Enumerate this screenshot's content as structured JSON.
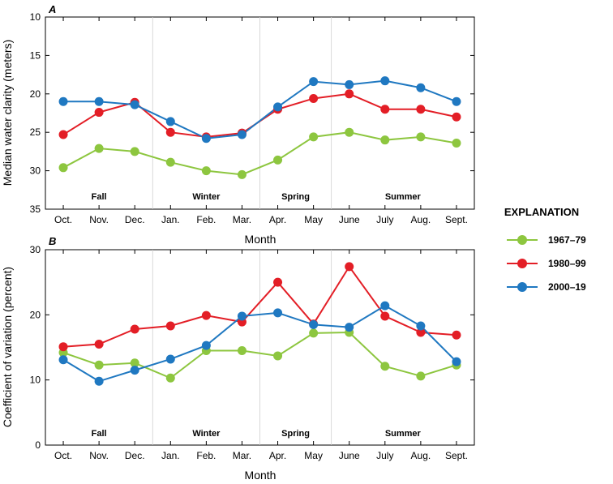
{
  "chart_data": [
    {
      "type": "line",
      "panel_label": "A",
      "ylabel": "Median water clarity (meters)",
      "xlabel": "Month",
      "ylim": [
        35,
        10
      ],
      "y_inverted": true,
      "yticks": [
        "10",
        "15",
        "20",
        "25",
        "30",
        "35"
      ],
      "ytick_values": [
        10,
        15,
        20,
        25,
        30,
        35
      ],
      "categories": [
        "Oct.",
        "Nov.",
        "Dec.",
        "Jan.",
        "Feb.",
        "Mar.",
        "Apr.",
        "May",
        "June",
        "July",
        "Aug.",
        "Sept."
      ],
      "seasons": [
        "Fall",
        "Winter",
        "Spring",
        "Summer"
      ],
      "series": [
        {
          "name": "1967–79",
          "color": "#8DC63F",
          "values": [
            29.6,
            27.1,
            27.5,
            28.9,
            30.0,
            30.5,
            28.6,
            25.6,
            25.0,
            26.0,
            25.6,
            26.4
          ]
        },
        {
          "name": "1980–99",
          "color": "#E31E26",
          "values": [
            25.3,
            22.4,
            21.1,
            25.0,
            25.6,
            25.1,
            22.0,
            20.6,
            20.0,
            22.0,
            22.0,
            23.0
          ]
        },
        {
          "name": "2000–19",
          "color": "#1F78C1",
          "values": [
            21.0,
            21.0,
            21.4,
            23.6,
            25.8,
            25.3,
            21.7,
            18.4,
            18.8,
            18.3,
            19.2,
            21.0
          ]
        }
      ]
    },
    {
      "type": "line",
      "panel_label": "B",
      "ylabel": "Coefficient of variation (percent)",
      "xlabel": "Month",
      "ylim": [
        0,
        30
      ],
      "yticks": [
        "0",
        "10",
        "20",
        "30"
      ],
      "ytick_values": [
        0,
        10,
        20,
        30
      ],
      "categories": [
        "Oct.",
        "Nov.",
        "Dec.",
        "Jan.",
        "Feb.",
        "Mar.",
        "Apr.",
        "May",
        "June",
        "July",
        "Aug.",
        "Sept."
      ],
      "seasons": [
        "Fall",
        "Winter",
        "Spring",
        "Summer"
      ],
      "series": [
        {
          "name": "1967–79",
          "color": "#8DC63F",
          "values": [
            14.2,
            12.3,
            12.6,
            10.3,
            14.5,
            14.5,
            13.7,
            17.2,
            17.3,
            12.1,
            10.6,
            12.3
          ]
        },
        {
          "name": "1980–99",
          "color": "#E31E26",
          "values": [
            15.1,
            15.5,
            17.8,
            18.3,
            19.9,
            18.9,
            25.0,
            18.6,
            27.4,
            19.8,
            17.3,
            16.9
          ]
        },
        {
          "name": "2000–19",
          "color": "#1F78C1",
          "values": [
            13.1,
            9.8,
            11.5,
            13.2,
            15.3,
            19.8,
            20.3,
            18.5,
            18.1,
            21.4,
            18.3,
            12.8
          ]
        }
      ]
    }
  ],
  "legend": {
    "title": "EXPLANATION",
    "items": [
      {
        "label": "1967–79",
        "color": "#8DC63F"
      },
      {
        "label": "1980–99",
        "color": "#E31E26"
      },
      {
        "label": "2000–19",
        "color": "#1F78C1"
      }
    ]
  }
}
